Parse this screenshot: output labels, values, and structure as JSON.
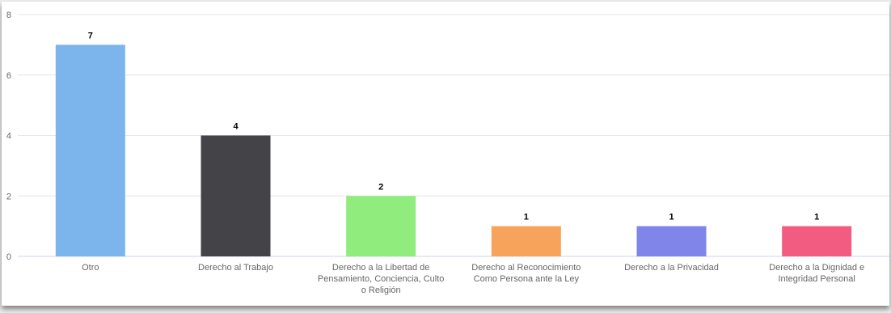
{
  "chart_data": {
    "type": "bar",
    "title": "",
    "xlabel": "",
    "ylabel": "",
    "ylim": [
      0,
      8
    ],
    "yticks": [
      "0",
      "2",
      "4",
      "6",
      "8"
    ],
    "grid": true,
    "categories": [
      {
        "lines": [
          "Otro"
        ]
      },
      {
        "lines": [
          "Derecho al Trabajo"
        ]
      },
      {
        "lines": [
          "Derecho a la Libertad de",
          "Pensamiento, Conciencia, Culto",
          "o Religión"
        ]
      },
      {
        "lines": [
          "Derecho al Reconocimiento",
          "Como Persona ante la Ley"
        ]
      },
      {
        "lines": [
          "Derecho a la Privacidad"
        ]
      },
      {
        "lines": [
          "Derecho a la Dignidad e",
          "Integridad Personal"
        ]
      }
    ],
    "values": [
      7,
      4,
      2,
      1,
      1,
      1
    ],
    "data_labels": [
      "7",
      "4",
      "2",
      "1",
      "1",
      "1"
    ],
    "colors": [
      "#7cb5ec",
      "#434348",
      "#90ed7d",
      "#f7a35c",
      "#8085e9",
      "#f15c80"
    ]
  }
}
